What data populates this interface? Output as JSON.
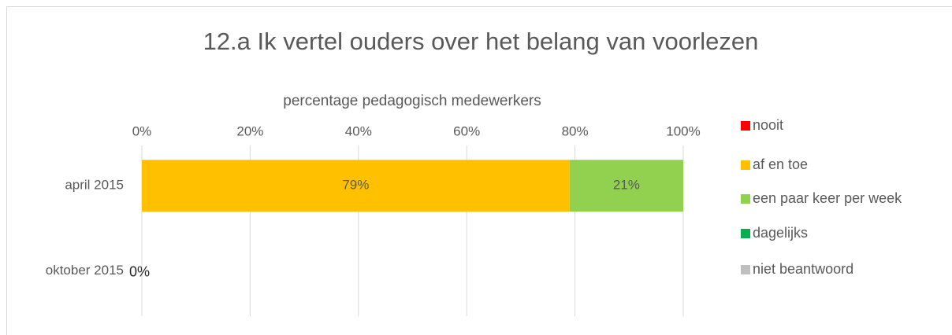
{
  "chart_data": {
    "type": "stacked-bar-horizontal",
    "title": "12.a Ik vertel ouders over het belang van voorlezen",
    "x_label": "percentage pedagogisch medewerkers",
    "categories": [
      "april 2015",
      "oktober 2015"
    ],
    "series": [
      {
        "name": "nooit",
        "color": "#ff0000",
        "values": [
          0,
          0
        ],
        "value_labels": [
          null,
          "0%"
        ]
      },
      {
        "name": "af en toe",
        "color": "#ffc000",
        "values": [
          79,
          null
        ],
        "value_labels": [
          "79%",
          null
        ]
      },
      {
        "name": "een paar keer per week",
        "color": "#92d050",
        "values": [
          21,
          null
        ],
        "value_labels": [
          "21%",
          null
        ]
      },
      {
        "name": "dagelijks",
        "color": "#00b050",
        "values": [
          0,
          null
        ],
        "value_labels": [
          null,
          null
        ]
      },
      {
        "name": "niet beantwoord",
        "color": "#bfbfbf",
        "values": [
          0,
          null
        ],
        "value_labels": [
          null,
          null
        ]
      }
    ],
    "xlim": [
      0,
      100
    ],
    "xticks": [
      {
        "value": 0,
        "label": "0%"
      },
      {
        "value": 20,
        "label": "20%"
      },
      {
        "value": 40,
        "label": "40%"
      },
      {
        "value": 60,
        "label": "60%"
      },
      {
        "value": 80,
        "label": "80%"
      },
      {
        "value": 100,
        "label": "100%"
      }
    ],
    "grid": true,
    "legend": "right"
  }
}
